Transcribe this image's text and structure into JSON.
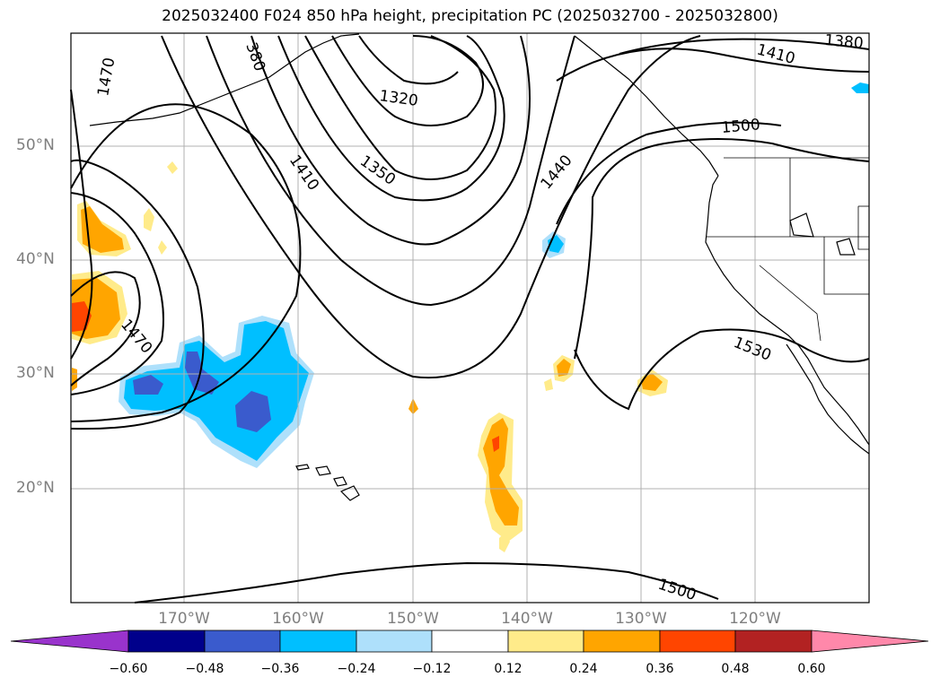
{
  "title": "2025032400 F024 850 hPa height, precipitation PC (2025032700 - 2025032800)",
  "lat_labels": [
    "50°N",
    "40°N",
    "30°N",
    "20°N"
  ],
  "lon_labels": [
    "170°W",
    "160°W",
    "150°W",
    "140°W",
    "130°W",
    "120°W"
  ],
  "contour_labels": [
    "1470",
    "380",
    "1320",
    "1410",
    "1350",
    "1440",
    "1410",
    "1380",
    "1500",
    "1470",
    "1530",
    "1500"
  ],
  "colorbar": {
    "ticks": [
      "−0.60",
      "−0.48",
      "−0.36",
      "−0.24",
      "−0.12",
      "0.12",
      "0.24",
      "0.36",
      "0.48",
      "0.60"
    ],
    "colors": [
      "#9933cc",
      "#00008b",
      "#3a5bcd",
      "#00bfff",
      "#aee0fb",
      "#ffffff",
      "#ffeb8a",
      "#ffa500",
      "#ff4500",
      "#b22222",
      "#ff88aa"
    ]
  },
  "colors": {
    "contour": "#000000",
    "grid": "#b0b0b0",
    "tick_text": "#7f7f7f"
  }
}
